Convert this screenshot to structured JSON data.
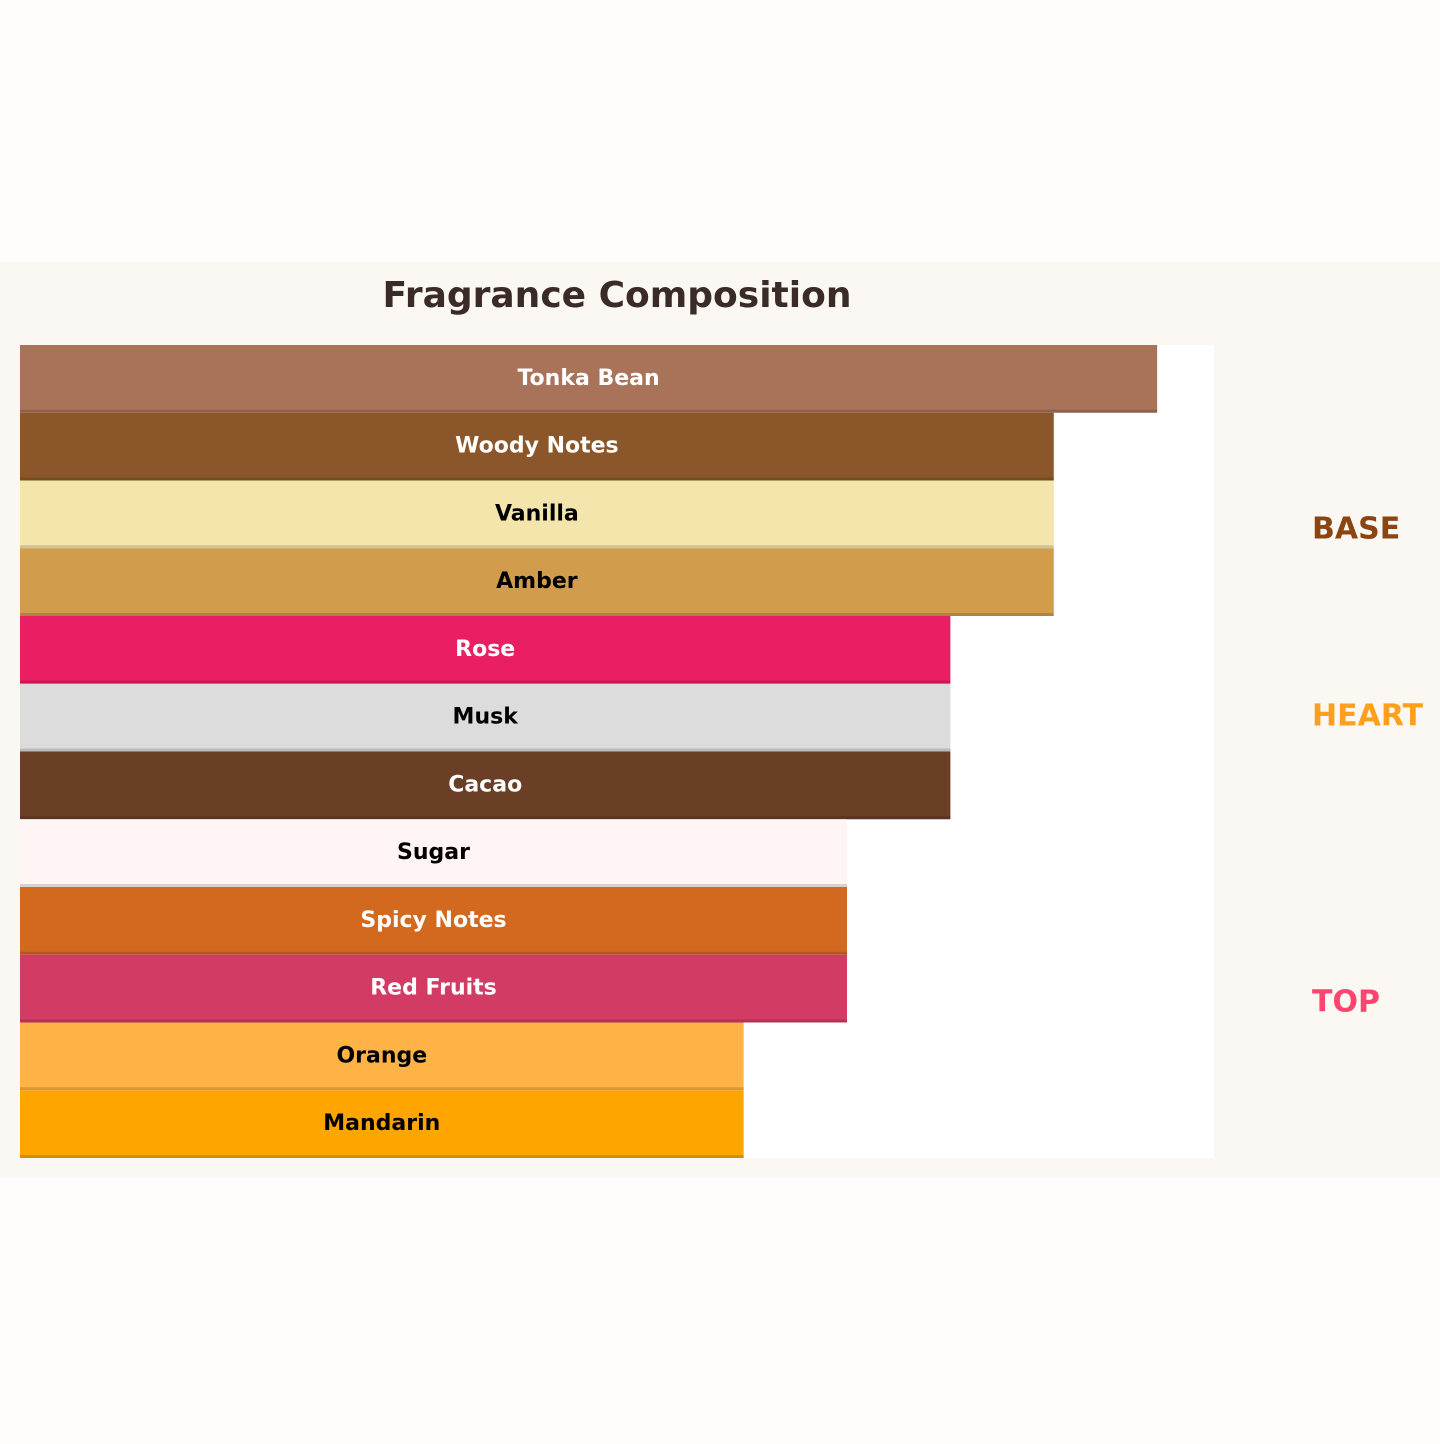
{
  "chart_data": {
    "type": "barh",
    "title": "Fragrance Composition",
    "categories": [
      "Tonka Bean",
      "Woody Notes",
      "Vanilla",
      "Amber",
      "Rose",
      "Musk",
      "Cacao",
      "Sugar",
      "Spicy Notes",
      "Red Fruits",
      "Orange",
      "Mandarin"
    ],
    "values": [
      11,
      10,
      10,
      10,
      9,
      9,
      9,
      8,
      8,
      8,
      7,
      7
    ],
    "colors": [
      "#a9735a",
      "#8b572a",
      "#f3e5ab",
      "#d19c4c",
      "#e91e63",
      "#dcdcdc",
      "#6b3e26",
      "#fff5f5",
      "#d2691e",
      "#d23c64",
      "#ffb347",
      "#ffa500"
    ],
    "label_colors": [
      "#ffffff",
      "#ffffff",
      "#000000",
      "#000000",
      "#ffffff",
      "#000000",
      "#ffffff",
      "#000000",
      "#ffffff",
      "#ffffff",
      "#000000",
      "#000000"
    ],
    "xlim": [
      0,
      11.55
    ],
    "layers": [
      {
        "label": "BASE",
        "color": "#8b4513"
      },
      {
        "label": "HEART",
        "color": "#ff9f1c"
      },
      {
        "label": "TOP",
        "color": "#ff4470"
      }
    ]
  }
}
